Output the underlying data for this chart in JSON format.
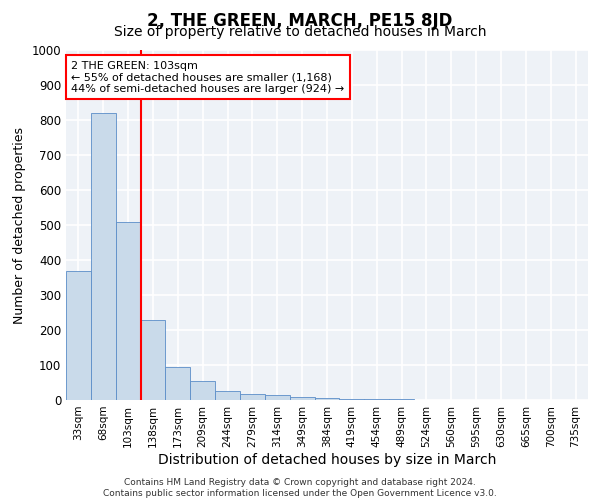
{
  "title": "2, THE GREEN, MARCH, PE15 8JD",
  "subtitle": "Size of property relative to detached houses in March",
  "xlabel": "Distribution of detached houses by size in March",
  "ylabel": "Number of detached properties",
  "bar_labels": [
    "33sqm",
    "68sqm",
    "103sqm",
    "138sqm",
    "173sqm",
    "209sqm",
    "244sqm",
    "279sqm",
    "314sqm",
    "349sqm",
    "384sqm",
    "419sqm",
    "454sqm",
    "489sqm",
    "524sqm",
    "560sqm",
    "595sqm",
    "630sqm",
    "665sqm",
    "700sqm",
    "735sqm"
  ],
  "bar_values": [
    370,
    820,
    510,
    230,
    93,
    55,
    25,
    18,
    15,
    8,
    5,
    3,
    2,
    2,
    1,
    1,
    1,
    1,
    0,
    0,
    0
  ],
  "bar_color": "#c9daea",
  "bar_edge_color": "#5b8dc8",
  "red_line_x": 2.5,
  "annotation_text": "2 THE GREEN: 103sqm\n← 55% of detached houses are smaller (1,168)\n44% of semi-detached houses are larger (924) →",
  "ylim": [
    0,
    1000
  ],
  "yticks": [
    0,
    100,
    200,
    300,
    400,
    500,
    600,
    700,
    800,
    900,
    1000
  ],
  "footnote": "Contains HM Land Registry data © Crown copyright and database right 2024.\nContains public sector information licensed under the Open Government Licence v3.0.",
  "background_color": "#eef2f7",
  "grid_color": "white",
  "title_fontsize": 12,
  "subtitle_fontsize": 10,
  "ylabel_fontsize": 9,
  "xlabel_fontsize": 10,
  "tick_fontsize": 7.5,
  "footnote_fontsize": 6.5,
  "annotation_fontsize": 8
}
